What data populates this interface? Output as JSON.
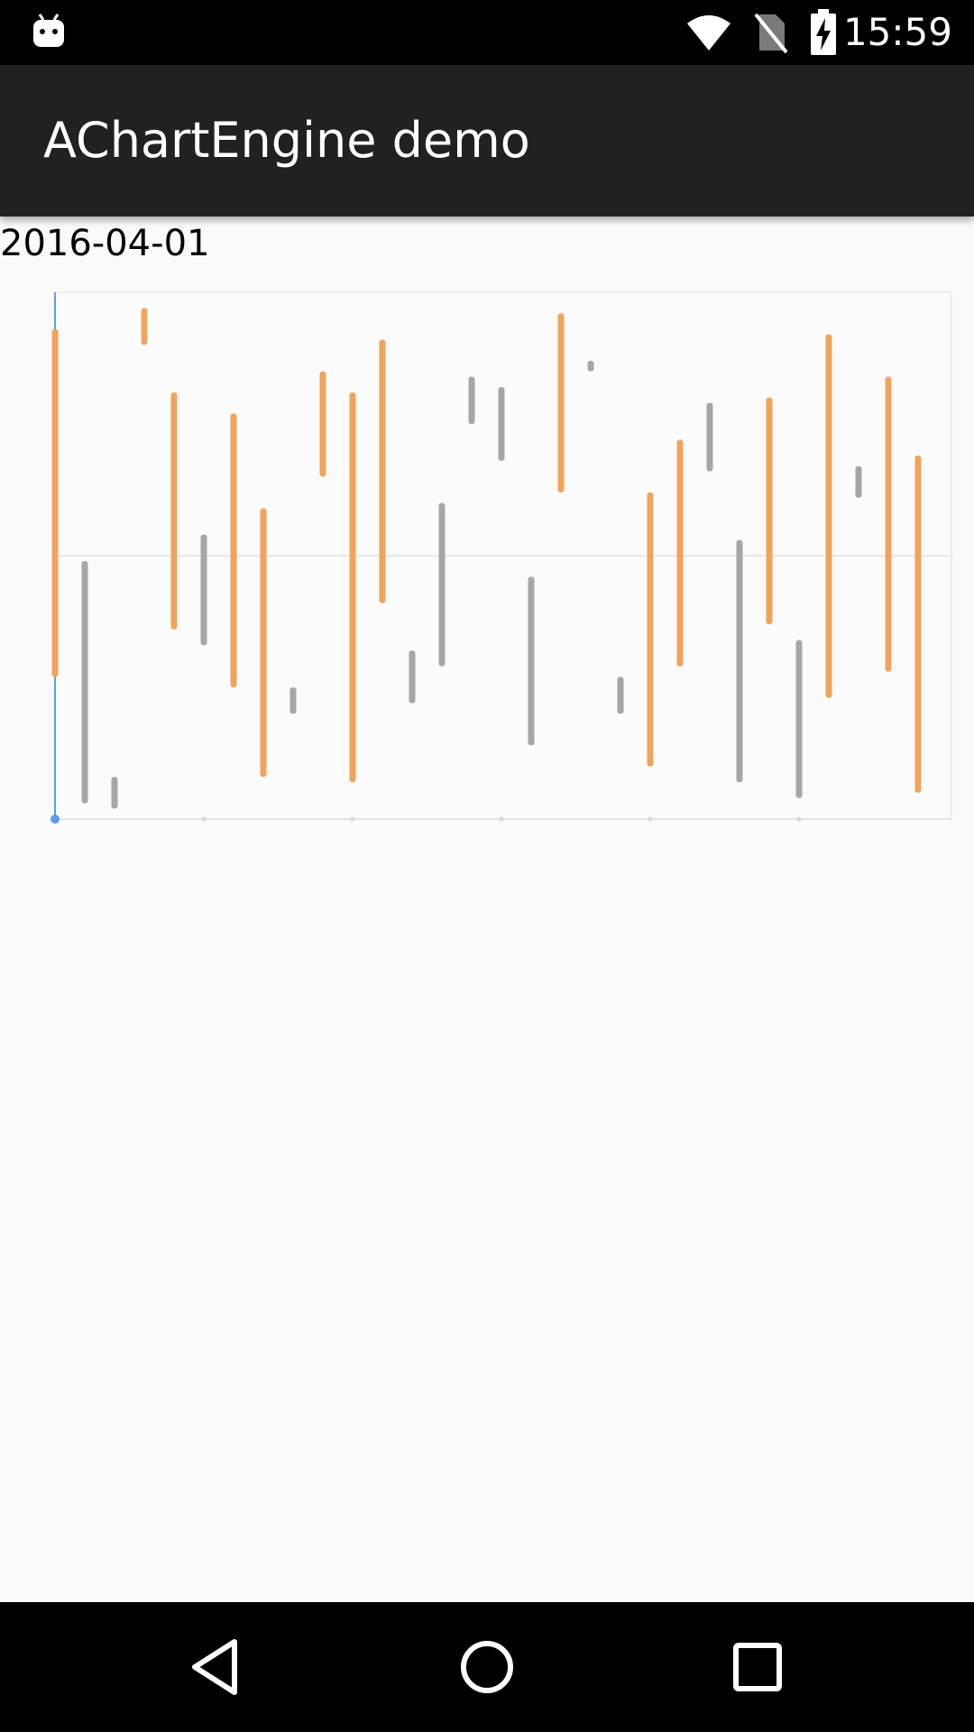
{
  "status_bar": {
    "time": "15:59",
    "icons": [
      "android-debug-icon",
      "wifi-icon",
      "no-sim-icon",
      "battery-charging-icon"
    ]
  },
  "app_bar": {
    "title": "AChartEngine demo"
  },
  "date_label": "2016-04-01",
  "colors": {
    "up": "#f0a35a",
    "down": "#a6a6a6",
    "axis": "#5b9bf0",
    "grid": "#e2e2e2"
  },
  "chart_data": {
    "type": "bar",
    "description_free": true,
    "x_count": 30,
    "ylim": [
      0,
      100
    ],
    "grid": true,
    "series": [
      {
        "values": [
          {
            "low": 27,
            "high": 93,
            "dir": "up"
          },
          {
            "low": 3,
            "high": 49,
            "dir": "down"
          },
          {
            "low": 2,
            "high": 8,
            "dir": "down"
          },
          {
            "low": 90,
            "high": 97,
            "dir": "up"
          },
          {
            "low": 36,
            "high": 81,
            "dir": "up"
          },
          {
            "low": 33,
            "high": 54,
            "dir": "down"
          },
          {
            "low": 25,
            "high": 77,
            "dir": "up"
          },
          {
            "low": 8,
            "high": 59,
            "dir": "up"
          },
          {
            "low": 20,
            "high": 25,
            "dir": "down"
          },
          {
            "low": 65,
            "high": 85,
            "dir": "up"
          },
          {
            "low": 7,
            "high": 81,
            "dir": "up"
          },
          {
            "low": 41,
            "high": 91,
            "dir": "up"
          },
          {
            "low": 22,
            "high": 32,
            "dir": "down"
          },
          {
            "low": 29,
            "high": 60,
            "dir": "down"
          },
          {
            "low": 75,
            "high": 84,
            "dir": "down"
          },
          {
            "low": 68,
            "high": 82,
            "dir": "down"
          },
          {
            "low": 14,
            "high": 46,
            "dir": "down"
          },
          {
            "low": 62,
            "high": 96,
            "dir": "up"
          },
          {
            "low": 85,
            "high": 87,
            "dir": "down"
          },
          {
            "low": 20,
            "high": 27,
            "dir": "down"
          },
          {
            "low": 10,
            "high": 62,
            "dir": "up"
          },
          {
            "low": 29,
            "high": 72,
            "dir": "up"
          },
          {
            "low": 66,
            "high": 79,
            "dir": "down"
          },
          {
            "low": 7,
            "high": 53,
            "dir": "down"
          },
          {
            "low": 37,
            "high": 80,
            "dir": "up"
          },
          {
            "low": 4,
            "high": 34,
            "dir": "down"
          },
          {
            "low": 23,
            "high": 92,
            "dir": "up"
          },
          {
            "low": 61,
            "high": 67,
            "dir": "down"
          },
          {
            "low": 28,
            "high": 84,
            "dir": "up"
          },
          {
            "low": 5,
            "high": 69,
            "dir": "up"
          }
        ]
      }
    ]
  }
}
